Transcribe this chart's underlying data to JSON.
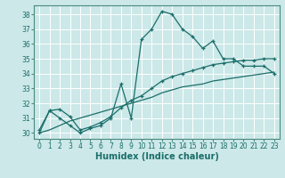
{
  "xlabel": "Humidex (Indice chaleur)",
  "background_color": "#cce8e8",
  "grid_color": "#ffffff",
  "line_color": "#1a6e6a",
  "xlim": [
    -0.5,
    23.5
  ],
  "ylim": [
    29.6,
    38.6
  ],
  "yticks": [
    30,
    31,
    32,
    33,
    34,
    35,
    36,
    37,
    38
  ],
  "xticks": [
    0,
    1,
    2,
    3,
    4,
    5,
    6,
    7,
    8,
    9,
    10,
    11,
    12,
    13,
    14,
    15,
    16,
    17,
    18,
    19,
    20,
    21,
    22,
    23
  ],
  "line1_x": [
    0,
    1,
    2,
    3,
    4,
    5,
    6,
    7,
    8,
    9,
    10,
    11,
    12,
    13,
    14,
    15,
    16,
    17,
    18,
    19,
    20,
    21,
    22,
    23
  ],
  "line1_y": [
    30.0,
    31.5,
    31.0,
    30.5,
    30.0,
    30.3,
    30.5,
    31.0,
    33.3,
    31.0,
    36.3,
    37.0,
    38.2,
    38.0,
    37.0,
    36.5,
    35.7,
    36.2,
    35.0,
    35.0,
    34.5,
    34.5,
    34.5,
    34.0
  ],
  "line2_x": [
    0,
    1,
    2,
    3,
    4,
    5,
    6,
    7,
    8,
    9,
    10,
    11,
    12,
    13,
    14,
    15,
    16,
    17,
    18,
    19,
    20,
    21,
    22,
    23
  ],
  "line2_y": [
    30.2,
    31.5,
    31.6,
    31.1,
    30.2,
    30.4,
    30.7,
    31.1,
    31.7,
    32.2,
    32.5,
    33.0,
    33.5,
    33.8,
    34.0,
    34.2,
    34.4,
    34.6,
    34.7,
    34.8,
    34.9,
    34.9,
    35.0,
    35.0
  ],
  "line3_x": [
    0,
    1,
    2,
    3,
    4,
    5,
    6,
    7,
    8,
    9,
    10,
    11,
    12,
    13,
    14,
    15,
    16,
    17,
    18,
    19,
    20,
    21,
    22,
    23
  ],
  "line3_y": [
    30.0,
    30.2,
    30.5,
    30.8,
    31.0,
    31.2,
    31.4,
    31.6,
    31.8,
    32.0,
    32.2,
    32.4,
    32.7,
    32.9,
    33.1,
    33.2,
    33.3,
    33.5,
    33.6,
    33.7,
    33.8,
    33.9,
    34.0,
    34.1
  ]
}
